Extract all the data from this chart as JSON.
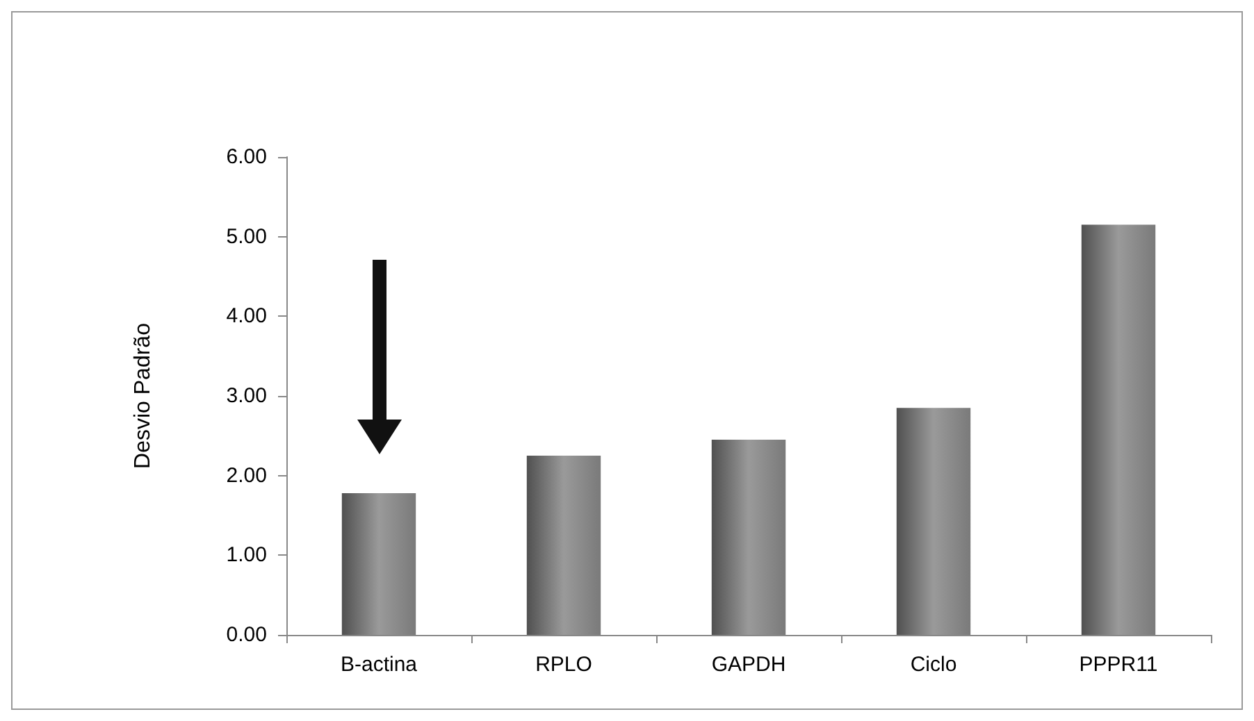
{
  "chart_data": {
    "type": "bar",
    "ylabel": "Desvio Padrão",
    "categories": [
      "B-actina",
      "RPLO",
      "GAPDH",
      "Ciclo",
      "PPPR11"
    ],
    "values": [
      1.78,
      2.25,
      2.45,
      2.85,
      5.15
    ],
    "color": "#9a9a9a",
    "ylim": [
      0,
      6
    ],
    "yticks": [
      {
        "value": 0,
        "label": "0.00"
      },
      {
        "value": 1,
        "label": "1.00"
      },
      {
        "value": 2,
        "label": "2.00"
      },
      {
        "value": 3,
        "label": "3.00"
      },
      {
        "value": 4,
        "label": "4.00"
      },
      {
        "value": 5,
        "label": "5.00"
      },
      {
        "value": 6,
        "label": "6.00"
      }
    ],
    "grid": false
  }
}
